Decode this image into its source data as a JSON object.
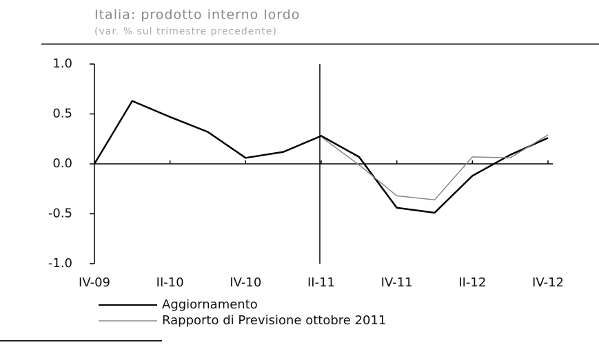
{
  "chart_data": {
    "type": "line",
    "title": "Italia: prodotto interno lordo",
    "subtitle": "(var. % sul trimestre precedente)",
    "categories": [
      "IV-09",
      null,
      "II-10",
      null,
      "IV-10",
      null,
      "II-11",
      null,
      "IV-11",
      null,
      "II-12",
      null,
      "IV-12"
    ],
    "series": [
      {
        "name": "Aggiornamento",
        "color": "#000000",
        "values": [
          0.0,
          0.63,
          0.47,
          0.32,
          0.06,
          0.12,
          0.28,
          0.07,
          -0.44,
          -0.49,
          -0.12,
          0.09,
          0.26
        ]
      },
      {
        "name": "Rapporto di Previsione ottobre 2011",
        "color": "#888888",
        "values": [
          null,
          null,
          null,
          null,
          null,
          null,
          0.27,
          -0.01,
          -0.32,
          -0.36,
          0.07,
          0.06,
          0.29
        ]
      }
    ],
    "ylim": [
      -1,
      1
    ],
    "yticks": [
      {
        "value": 1,
        "label": "1.0"
      },
      0.5,
      {
        "value": 0,
        "label": "0.0"
      },
      -0.5,
      {
        "value": -1,
        "label": "-1.0"
      }
    ],
    "grid": false
  }
}
